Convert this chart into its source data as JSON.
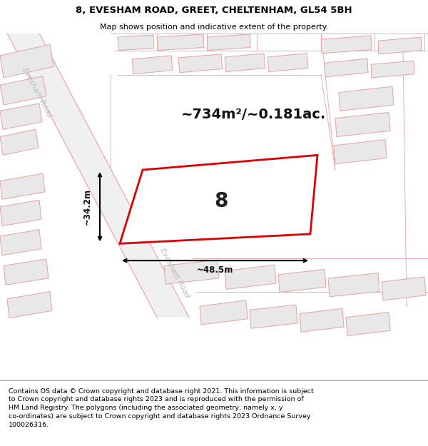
{
  "title": "8, EVESHAM ROAD, GREET, CHELTENHAM, GL54 5BH",
  "subtitle": "Map shows position and indicative extent of the property.",
  "footer": "Contains OS data © Crown copyright and database right 2021. This information is subject\nto Crown copyright and database rights 2023 and is reproduced with the permission of\nHM Land Registry. The polygons (including the associated geometry, namely x, y\nco-ordinates) are subject to Crown copyright and database rights 2023 Ordnance Survey\n100026316.",
  "background_color": "#ffffff",
  "map_bg": "#ffffff",
  "area_text": "~734m²/~0.181ac.",
  "number_text": "8",
  "width_label": "~48.5m",
  "height_label": "~34.2m",
  "road_label1": "Evesham Road",
  "road_label2": "Evesham Road",
  "highlight_color": "#dd0000",
  "building_fill": "#e8e8e8",
  "building_edge": "#e8a0a0",
  "road_line_color": "#e8a0a0",
  "road_label_color": "#bbbbbb",
  "title_fontsize": 9.5,
  "subtitle_fontsize": 8,
  "footer_fontsize": 6.8
}
